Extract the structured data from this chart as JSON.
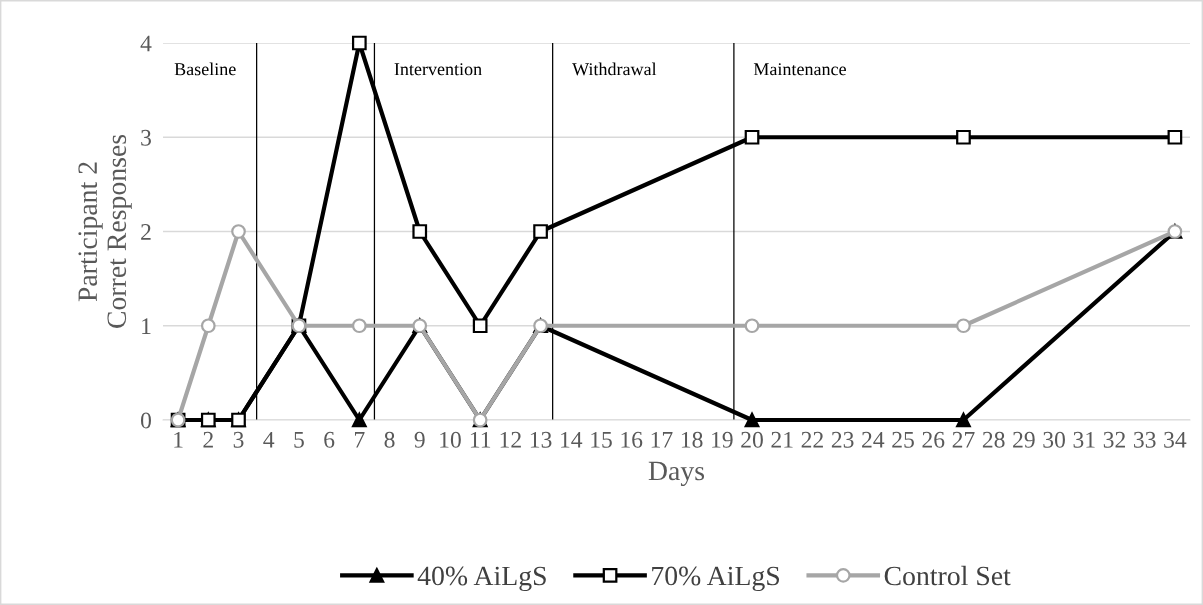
{
  "chart_data": {
    "type": "line",
    "xlabel": "Days",
    "ylabel": "Participant 2\nCorret Responses",
    "xlim": [
      0.5,
      34.5
    ],
    "xticks": [
      1,
      2,
      3,
      4,
      5,
      6,
      7,
      8,
      9,
      10,
      11,
      12,
      13,
      14,
      15,
      16,
      17,
      18,
      19,
      20,
      21,
      22,
      23,
      24,
      25,
      26,
      27,
      28,
      29,
      30,
      31,
      32,
      33,
      34
    ],
    "ylim": [
      0,
      4
    ],
    "yticks": [
      0,
      1,
      2,
      3,
      4
    ],
    "x": [
      1,
      2,
      3,
      5,
      7,
      9,
      11,
      13,
      20,
      27,
      34
    ],
    "series": [
      {
        "name": "40% AiLgS",
        "color": "#000000",
        "marker": "triangle",
        "values": [
          0,
          0,
          0,
          1,
          0,
          1,
          0,
          1,
          0,
          0,
          2
        ]
      },
      {
        "name": "70% AiLgS",
        "color": "#000000",
        "marker": "square",
        "values": [
          0,
          0,
          0,
          1,
          4,
          2,
          1,
          2,
          3,
          3,
          3
        ]
      },
      {
        "name": "Control Set",
        "color": "#a6a6a6",
        "marker": "circle",
        "values": [
          0,
          1,
          2,
          1,
          1,
          1,
          0,
          1,
          1,
          1,
          2
        ]
      }
    ],
    "ref_lines": [
      {
        "axis": "x",
        "value": 3.6,
        "color": "#000000"
      },
      {
        "axis": "x",
        "value": 7.5,
        "color": "#000000",
        "label": "Intervention"
      },
      {
        "axis": "x",
        "value": 13.4,
        "color": "#000000",
        "label": "Withdrawal"
      },
      {
        "axis": "x",
        "value": 19.4,
        "color": "#000000",
        "label": "Maintenance"
      }
    ],
    "annotations": [
      "Baseline"
    ],
    "grid": "y",
    "legend": "bottom",
    "line_style": "solid"
  }
}
